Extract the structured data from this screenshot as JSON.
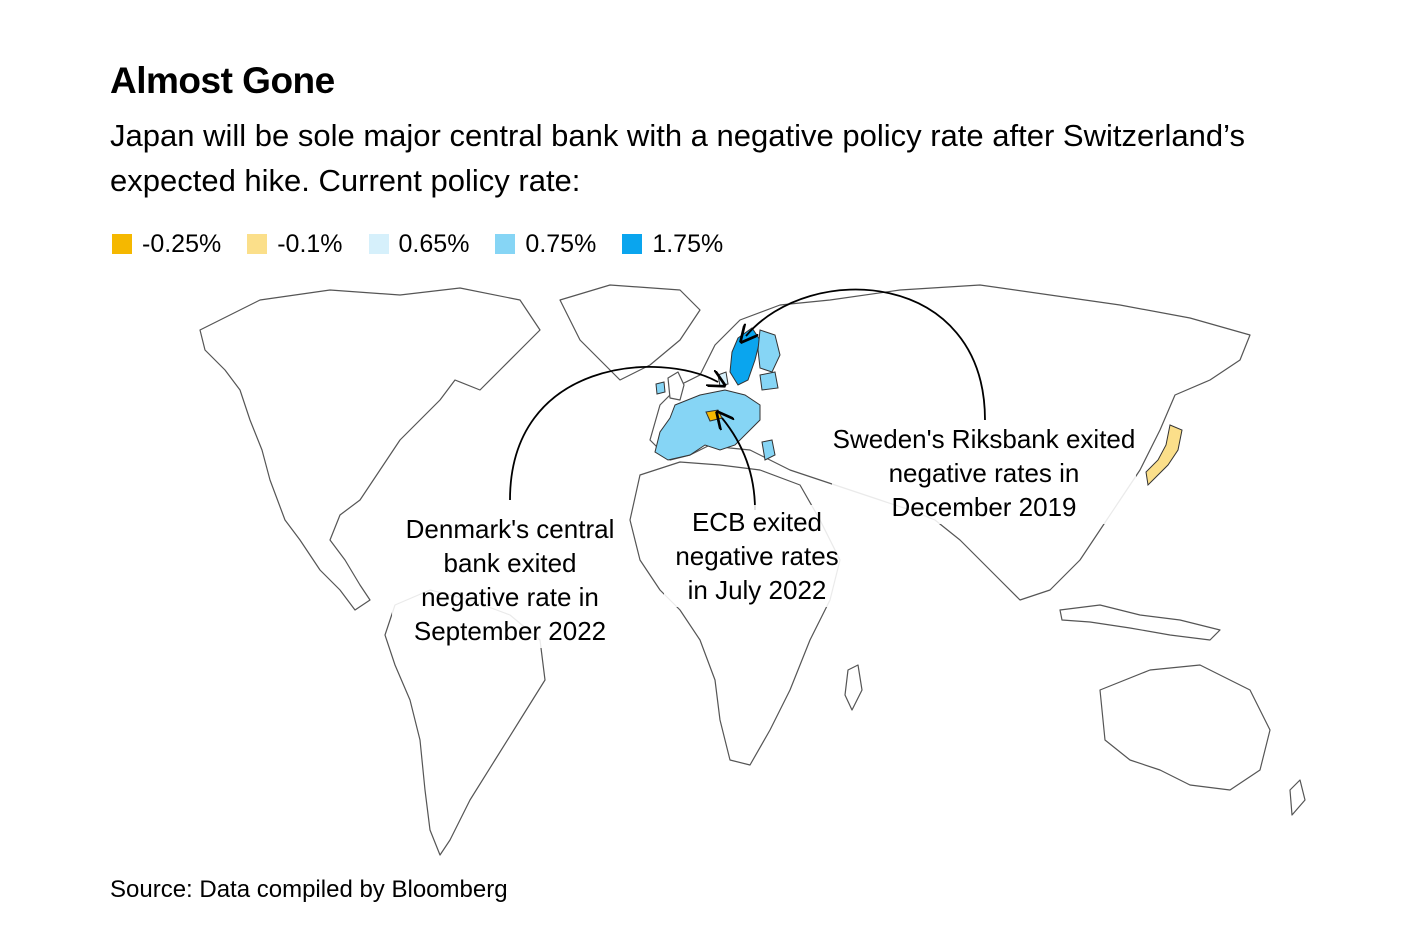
{
  "title": "Almost Gone",
  "subtitle": "Japan will be sole major central bank with a negative policy rate after Switzerland’s expected hike. Current policy rate:",
  "legend": [
    {
      "label": "-0.25%",
      "color": "#F5B800"
    },
    {
      "label": "-0.1%",
      "color": "#FBDF8A"
    },
    {
      "label": "0.65%",
      "color": "#D6F0FB"
    },
    {
      "label": "0.75%",
      "color": "#86D5F5"
    },
    {
      "label": "1.75%",
      "color": "#0AA5EE"
    }
  ],
  "map": {
    "highlighted": [
      {
        "country": "Switzerland",
        "rate": "-0.25%",
        "color": "#F5B800"
      },
      {
        "country": "Japan",
        "rate": "-0.1%",
        "color": "#FBDF8A"
      },
      {
        "country": "Denmark",
        "rate": "0.65%",
        "color": "#D6F0FB"
      },
      {
        "country": "Euro area",
        "rate": "0.75%",
        "color": "#86D5F5"
      },
      {
        "country": "Sweden",
        "rate": "1.75%",
        "color": "#0AA5EE"
      }
    ]
  },
  "annotations": {
    "denmark": "Denmark's central bank exited negative rate in September 2022",
    "ecb": "ECB exited negative rates in July 2022",
    "sweden": "Sweden's Riksbank exited negative rates in December 2019"
  },
  "source": "Source: Data compiled by Bloomberg"
}
